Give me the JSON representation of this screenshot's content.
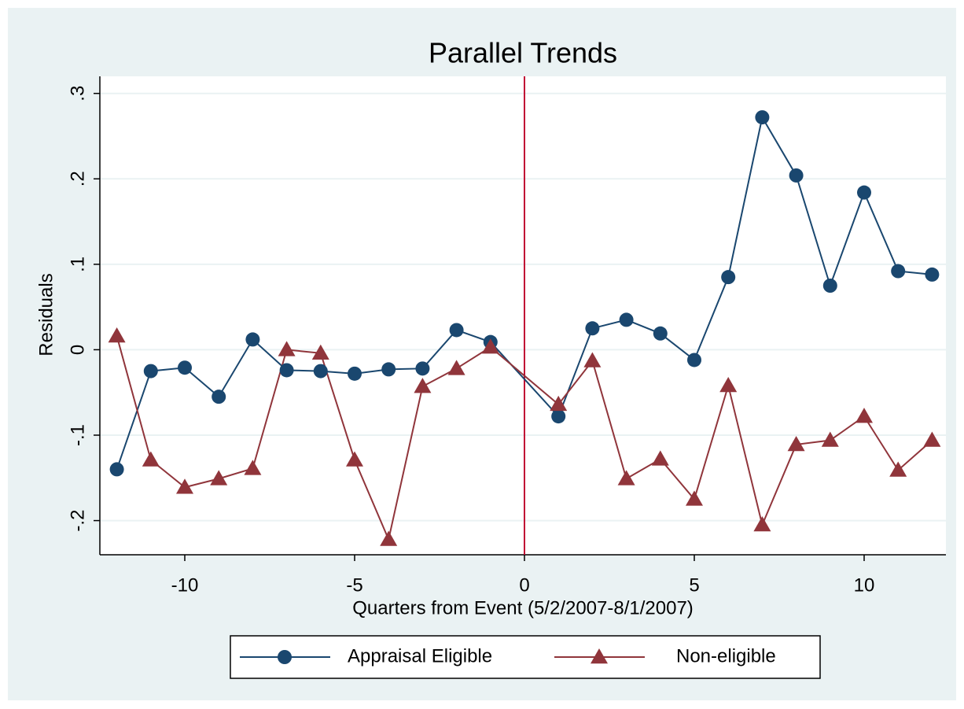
{
  "chart_data": {
    "type": "line",
    "title": "Parallel Trends",
    "x_label": "Quarters from Event (5/2/2007-8/1/2007)",
    "y_label": "Residuals",
    "x": [
      -12,
      -11,
      -10,
      -9,
      -8,
      -7,
      -6,
      -5,
      -4,
      -3,
      -2,
      -1,
      1,
      2,
      3,
      4,
      5,
      6,
      7,
      8,
      9,
      10,
      11,
      12
    ],
    "series": [
      {
        "name": "Appraisal Eligible",
        "color": "#1a476f",
        "marker": "circle",
        "values": [
          -0.14,
          -0.025,
          -0.021,
          -0.055,
          0.012,
          -0.024,
          -0.025,
          -0.028,
          -0.023,
          -0.022,
          0.023,
          0.009,
          -0.078,
          0.025,
          0.035,
          0.019,
          -0.012,
          0.085,
          0.272,
          0.204,
          0.075,
          0.184,
          0.092,
          0.088
        ]
      },
      {
        "name": "Non-eligible",
        "color": "#90353b",
        "marker": "triangle",
        "values": [
          0.016,
          -0.129,
          -0.161,
          -0.151,
          -0.139,
          0.0,
          -0.004,
          -0.129,
          -0.222,
          -0.043,
          -0.022,
          0.003,
          -0.064,
          -0.013,
          -0.151,
          -0.128,
          -0.175,
          -0.042,
          -0.205,
          -0.111,
          -0.106,
          -0.078,
          -0.141,
          -0.106
        ]
      }
    ],
    "xline": 0,
    "xline_color": "#c10534",
    "xlim": [
      -12.5,
      12.5
    ],
    "ylim": [
      -0.24,
      0.32
    ],
    "xticks": [
      -10,
      -5,
      0,
      5,
      10
    ],
    "yticks": [
      {
        "value": -0.2,
        "label": "-.2"
      },
      {
        "value": -0.1,
        "label": "-.1"
      },
      0,
      {
        "value": 0.1,
        "label": ".1"
      },
      {
        "value": 0.2,
        "label": ".2"
      },
      {
        "value": 0.3,
        "label": ".3"
      }
    ],
    "grid": true,
    "legend": "bottom"
  }
}
